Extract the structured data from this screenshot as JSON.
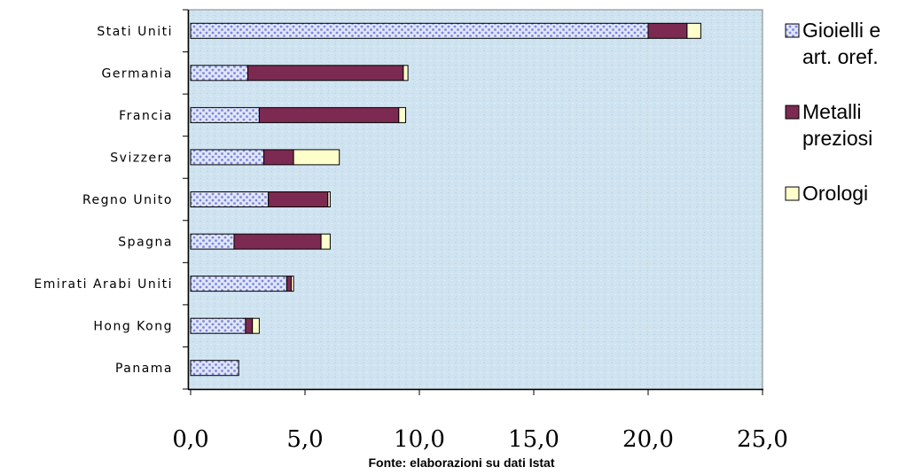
{
  "chart_data": {
    "type": "bar",
    "orientation": "horizontal",
    "stacked": true,
    "categories": [
      "Stati Uniti",
      "Germania",
      "Francia",
      "Svizzera",
      "Regno Unito",
      "Spagna",
      "Emirati Arabi Uniti",
      "Hong Kong",
      "Panama"
    ],
    "series": [
      {
        "name": "Gioielli e art. oref.",
        "color": "#dfe6fa",
        "pattern": "dots",
        "dot_color": "#7e86dc",
        "values": [
          20.0,
          2.5,
          3.0,
          3.2,
          3.4,
          1.9,
          4.2,
          2.4,
          2.1
        ]
      },
      {
        "name": "Metalli preziosi",
        "color": "#7c2a51",
        "values": [
          1.7,
          6.8,
          6.1,
          1.3,
          2.6,
          3.8,
          0.2,
          0.3,
          0.0
        ]
      },
      {
        "name": "Orologi",
        "color": "#ffffcc",
        "values": [
          0.6,
          0.2,
          0.3,
          2.0,
          0.1,
          0.4,
          0.1,
          0.3,
          0.0
        ]
      }
    ],
    "xlim": [
      0,
      25
    ],
    "x_ticks": [
      "0,0",
      "5,0",
      "10,0",
      "15,0",
      "20,0",
      "25,0"
    ],
    "legend_position": "right",
    "legend_labels": [
      [
        "Gioielli e",
        "art. oref."
      ],
      [
        "Metalli",
        "preziosi"
      ],
      [
        "Orologi"
      ]
    ],
    "plot_background": "#cfe3f0",
    "grid": false
  },
  "source_note": "Fonte: elaborazioni su dati Istat"
}
